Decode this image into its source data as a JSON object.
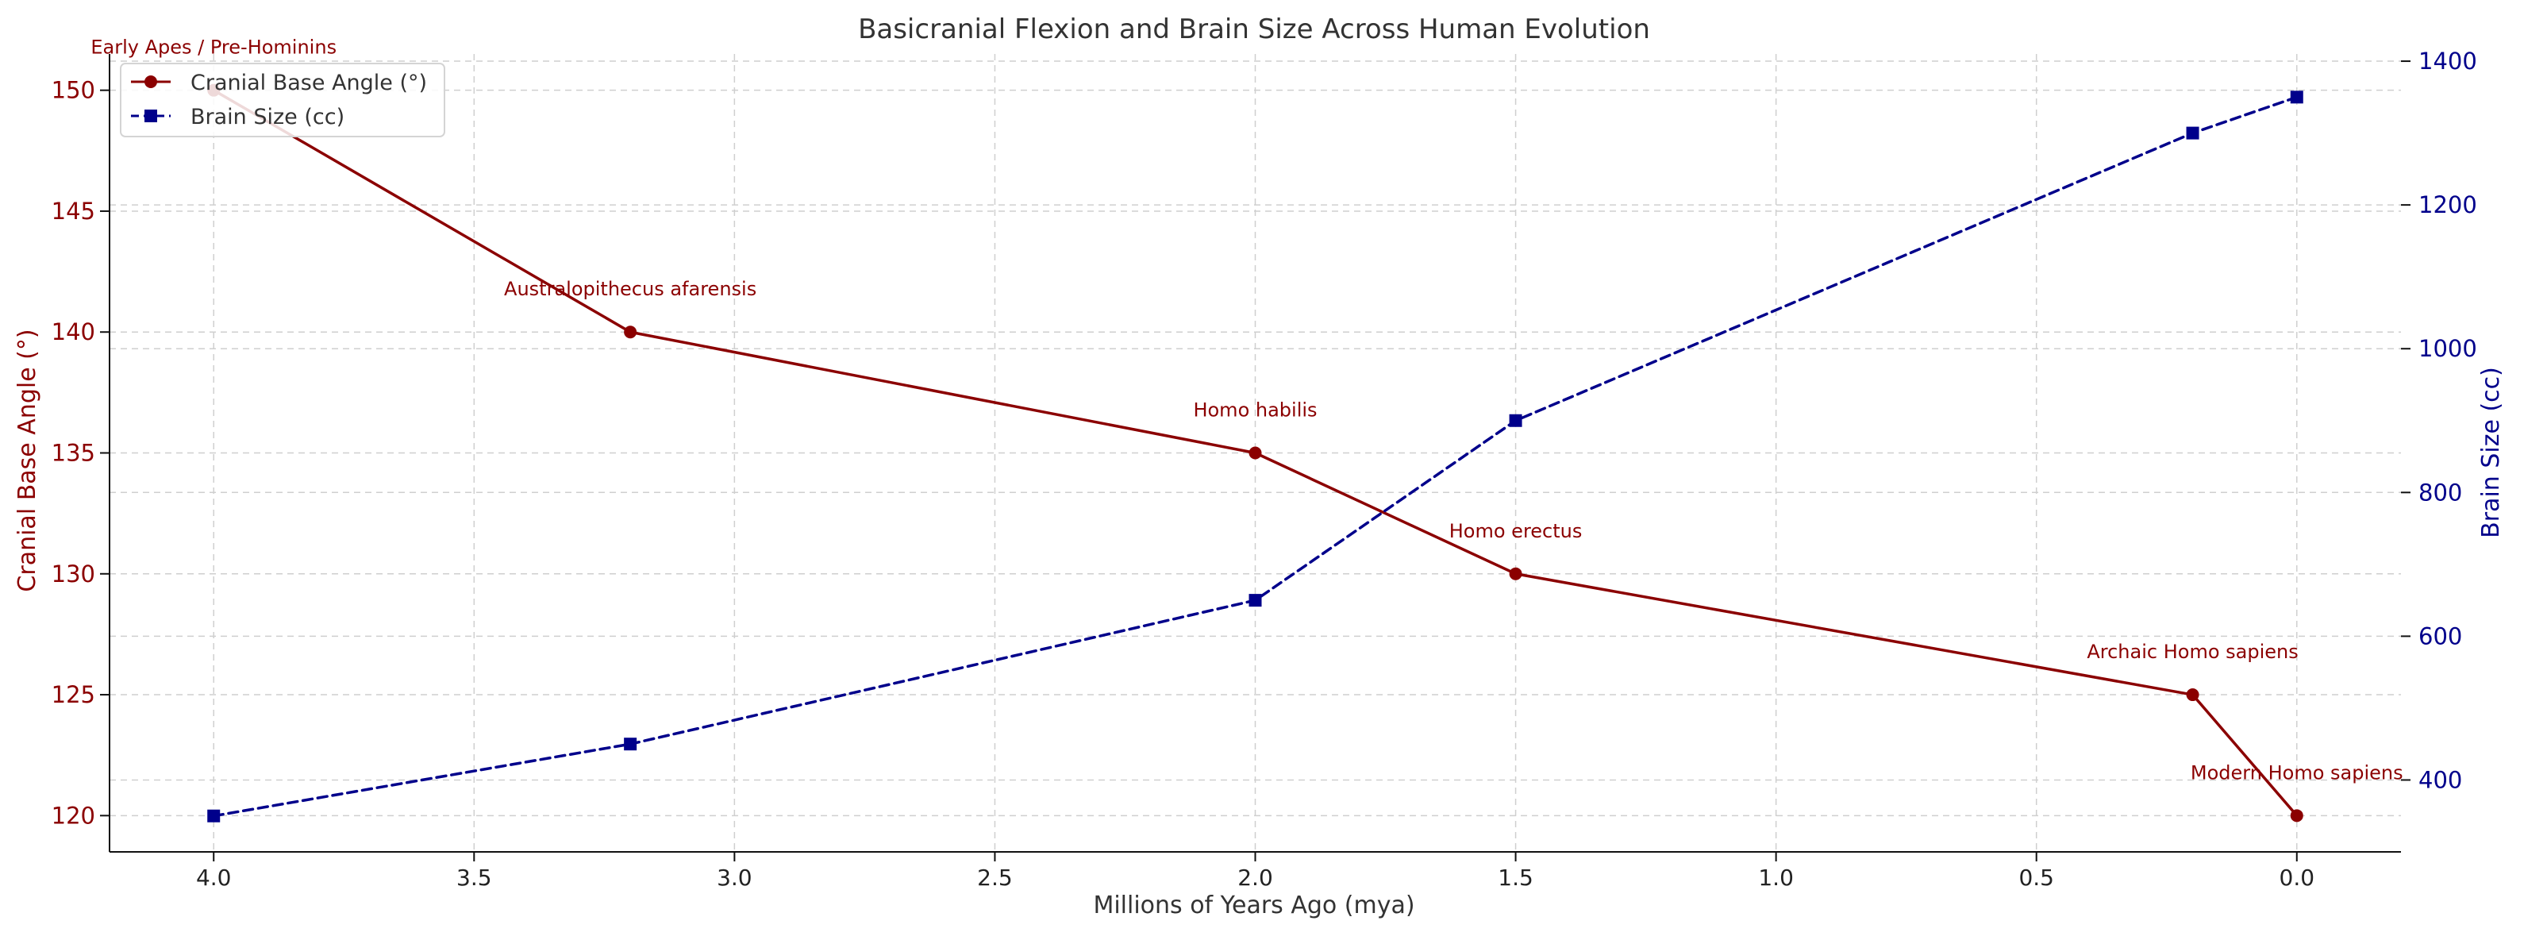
{
  "chart_data": {
    "type": "line",
    "title": "Basicranial Flexion and Brain Size Across Human Evolution",
    "xlabel": "Millions of Years Ago (mya)",
    "ylabel_left": "Cranial Base Angle (°)",
    "ylabel_right": "Brain Size (cc)",
    "x_reversed": true,
    "xlim": [
      4.2,
      -0.2
    ],
    "ylim_left": [
      118.5,
      151.5
    ],
    "ylim_right": [
      300,
      1410
    ],
    "x_ticks": [
      4.0,
      3.5,
      3.0,
      2.5,
      2.0,
      1.5,
      1.0,
      0.5,
      0.0
    ],
    "x_tick_labels": [
      "4.0",
      "3.5",
      "3.0",
      "2.5",
      "2.0",
      "1.5",
      "1.0",
      "0.5",
      "0.0"
    ],
    "y_left_ticks": [
      120,
      125,
      130,
      135,
      140,
      145,
      150
    ],
    "y_left_tick_labels": [
      "120",
      "125",
      "130",
      "135",
      "140",
      "145",
      "150"
    ],
    "y_right_ticks": [
      400,
      600,
      800,
      1000,
      1200,
      1400
    ],
    "y_right_tick_labels": [
      "400",
      "600",
      "800",
      "1000",
      "1200",
      "1400"
    ],
    "grid": true,
    "legend_position": "top-left",
    "x": [
      4.0,
      3.2,
      2.0,
      1.5,
      0.2,
      0.0
    ],
    "series": [
      {
        "name": "Cranial Base Angle (°)",
        "axis": "left",
        "color": "#8b0000",
        "marker": "circle",
        "line_style": "solid",
        "values": [
          150,
          140,
          135,
          130,
          125,
          120
        ]
      },
      {
        "name": "Brain Size (cc)",
        "axis": "right",
        "color": "#00008b",
        "marker": "square",
        "line_style": "dashed",
        "values": [
          350,
          450,
          650,
          900,
          1300,
          1350
        ]
      }
    ],
    "annotations": [
      {
        "text": "Early Apes / Pre-Hominins",
        "x": 4.0,
        "y": 150
      },
      {
        "text": "Australopithecus afarensis",
        "x": 3.2,
        "y": 140
      },
      {
        "text": "Homo habilis",
        "x": 2.0,
        "y": 135
      },
      {
        "text": "Homo erectus",
        "x": 1.5,
        "y": 130
      },
      {
        "text": "Archaic Homo sapiens",
        "x": 0.2,
        "y": 125
      },
      {
        "text": "Modern Homo sapiens",
        "x": 0.0,
        "y": 120
      }
    ],
    "colors": {
      "left_axis": "#8b0000",
      "right_axis": "#00008b",
      "text": "#333333",
      "grid": "#cfcfcf",
      "annotation": "#8b0000"
    }
  }
}
